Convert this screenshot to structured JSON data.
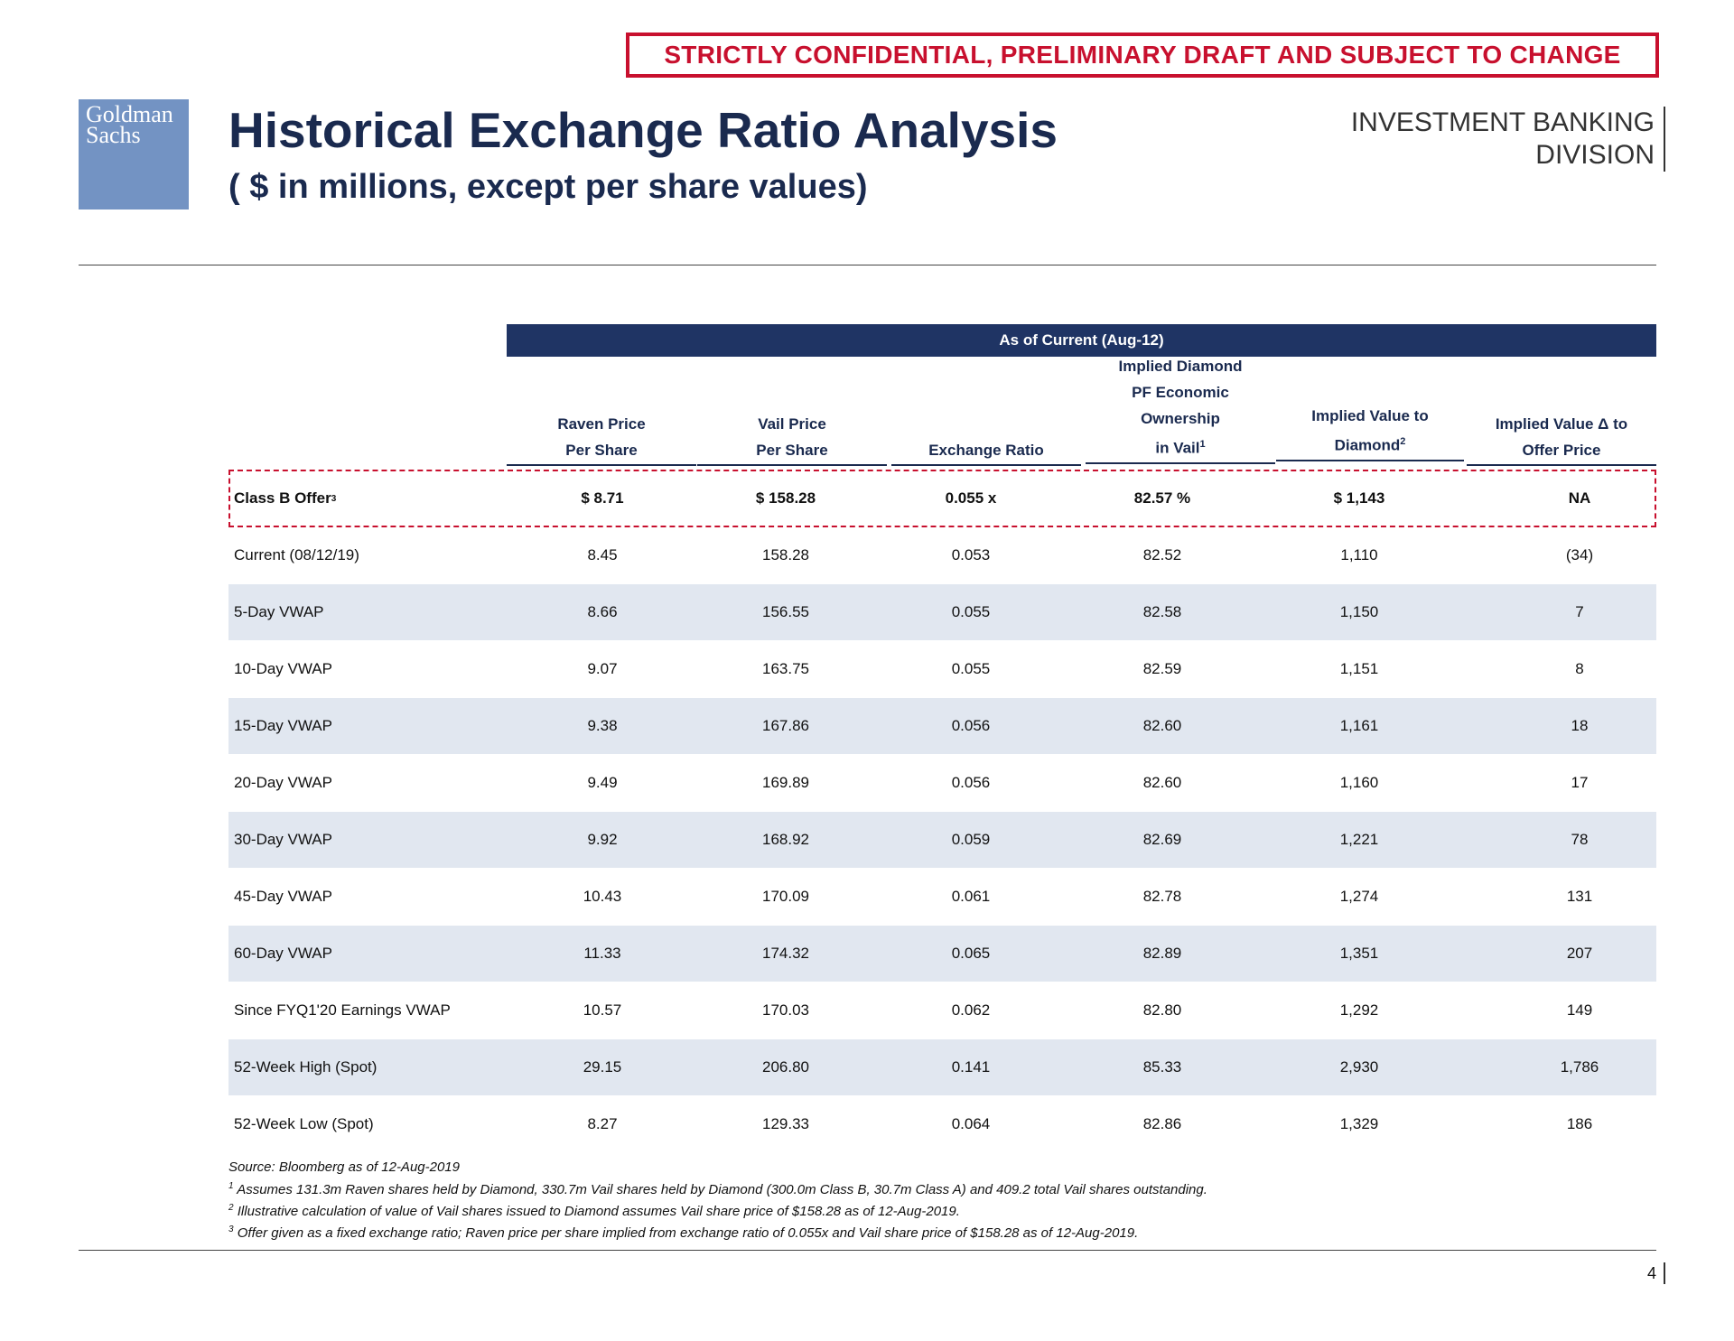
{
  "banner": "STRICTLY CONFIDENTIAL, PRELIMINARY DRAFT AND SUBJECT TO CHANGE",
  "logo": {
    "line1": "Goldman",
    "line2": "Sachs"
  },
  "title": "Historical Exchange Ratio Analysis",
  "subtitle": "( $ in millions, except per share values)",
  "division": {
    "line1": "INVESTMENT BANKING",
    "line2": "DIVISION"
  },
  "table": {
    "band": "As of Current (Aug-12)",
    "headers": [
      {
        "line1": "Raven Price",
        "line2": "Per Share",
        "sup": ""
      },
      {
        "line1": "Vail Price",
        "line2": "Per Share",
        "sup": ""
      },
      {
        "line1": "",
        "line2": "Exchange Ratio",
        "sup": ""
      },
      {
        "line0": "Implied Diamond",
        "line0b": "PF Economic",
        "line1": "Ownership",
        "line2": "in Vail",
        "sup": "1"
      },
      {
        "line1": "Implied Value to",
        "line2": "Diamond",
        "sup": "2"
      },
      {
        "line1": "Implied Value Δ to",
        "line2": "Offer Price",
        "sup": ""
      }
    ],
    "offer": {
      "label": "Class B Offer",
      "label_sup": "3",
      "values": [
        "$ 8.71",
        "$ 158.28",
        "0.055 x",
        "82.57 %",
        "$ 1,143",
        "NA"
      ]
    },
    "rows": [
      {
        "label": "Current (08/12/19)",
        "values": [
          "8.45",
          "158.28",
          "0.053",
          "82.52",
          "1,110",
          "(34)"
        ]
      },
      {
        "label": "5-Day VWAP",
        "values": [
          "8.66",
          "156.55",
          "0.055",
          "82.58",
          "1,150",
          "7"
        ]
      },
      {
        "label": "10-Day VWAP",
        "values": [
          "9.07",
          "163.75",
          "0.055",
          "82.59",
          "1,151",
          "8"
        ]
      },
      {
        "label": "15-Day VWAP",
        "values": [
          "9.38",
          "167.86",
          "0.056",
          "82.60",
          "1,161",
          "18"
        ]
      },
      {
        "label": "20-Day VWAP",
        "values": [
          "9.49",
          "169.89",
          "0.056",
          "82.60",
          "1,160",
          "17"
        ]
      },
      {
        "label": "30-Day VWAP",
        "values": [
          "9.92",
          "168.92",
          "0.059",
          "82.69",
          "1,221",
          "78"
        ]
      },
      {
        "label": "45-Day VWAP",
        "values": [
          "10.43",
          "170.09",
          "0.061",
          "82.78",
          "1,274",
          "131"
        ]
      },
      {
        "label": "60-Day VWAP",
        "values": [
          "11.33",
          "174.32",
          "0.065",
          "82.89",
          "1,351",
          "207"
        ]
      },
      {
        "label": "Since FYQ1'20 Earnings VWAP",
        "values": [
          "10.57",
          "170.03",
          "0.062",
          "82.80",
          "1,292",
          "149"
        ]
      },
      {
        "label": "52-Week High (Spot)",
        "values": [
          "29.15",
          "206.80",
          "0.141",
          "85.33",
          "2,930",
          "1,786"
        ]
      },
      {
        "label": "52-Week Low (Spot)",
        "values": [
          "8.27",
          "129.33",
          "0.064",
          "82.86",
          "1,329",
          "186"
        ]
      }
    ]
  },
  "footnotes": {
    "source": "Source: Bloomberg as of 12-Aug-2019",
    "notes": [
      {
        "marker": "1",
        "text": "Assumes 131.3m Raven shares held by Diamond, 330.7m Vail shares held by Diamond (300.0m Class B, 30.7m Class A) and 409.2 total Vail shares outstanding."
      },
      {
        "marker": "2",
        "text": "Illustrative calculation of value of Vail shares issued to Diamond assumes Vail share price of $158.28 as of 12-Aug-2019."
      },
      {
        "marker": "3",
        "text": "Offer given as a fixed exchange ratio; Raven price per share implied from exchange ratio of 0.055x and Vail share price of $158.28 as of 12-Aug-2019."
      }
    ]
  },
  "page_number": "4",
  "colors": {
    "accent_red": "#c8102e",
    "navy": "#1f3464",
    "logo_blue": "#7393c3",
    "row_shade": "#e1e7f0"
  }
}
